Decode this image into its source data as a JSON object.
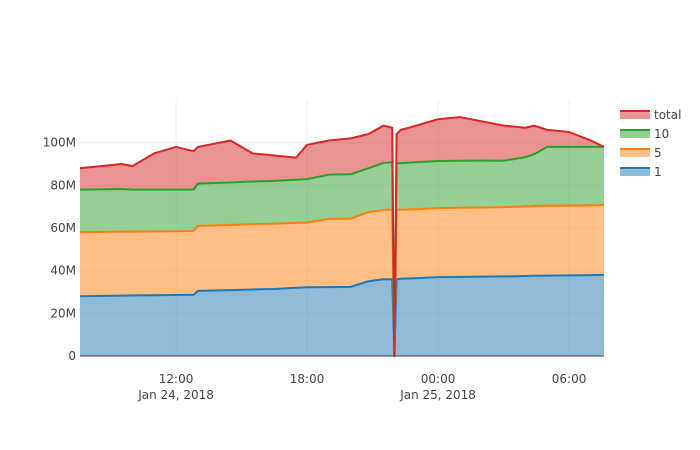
{
  "chart_data": {
    "type": "area",
    "stacked": true,
    "title": "",
    "xlabel": "",
    "ylabel": "",
    "x_unit": "hours since Jan 24, 2018 00:00",
    "xlim": [
      7.6,
      31.6
    ],
    "ylim": [
      0,
      120000000
    ],
    "yticks": [
      0,
      20000000,
      40000000,
      60000000,
      80000000,
      100000000
    ],
    "ytick_labels": [
      "0",
      "20M",
      "40M",
      "60M",
      "80M",
      "100M"
    ],
    "xticks": [
      {
        "x": 12,
        "label": "12:00",
        "sublabel": "Jan 24, 2018"
      },
      {
        "x": 18,
        "label": "18:00",
        "sublabel": ""
      },
      {
        "x": 24,
        "label": "00:00",
        "sublabel": "Jan 25, 2018"
      },
      {
        "x": 30,
        "label": "06:00",
        "sublabel": ""
      }
    ],
    "grid": true,
    "legend_position": "top-right",
    "x": [
      7.6,
      9.5,
      10.0,
      11.0,
      12.0,
      12.8,
      13.0,
      14.5,
      15.5,
      16.5,
      17.5,
      18.0,
      19.0,
      20.0,
      20.8,
      21.5,
      21.9,
      22.0,
      22.1,
      22.3,
      23.0,
      24.0,
      25.0,
      26.0,
      27.0,
      28.0,
      28.4,
      29.0,
      30.0,
      31.0,
      31.6
    ],
    "series": [
      {
        "name": "1",
        "color": "#1f77b4",
        "values": [
          28000000,
          28300000,
          28400000,
          28500000,
          28600000,
          28700000,
          30500000,
          30900000,
          31200000,
          31400000,
          32000000,
          32200000,
          32300000,
          32400000,
          35000000,
          36000000,
          36000000,
          0,
          36000000,
          36200000,
          36500000,
          37000000,
          37100000,
          37200000,
          37300000,
          37500000,
          37600000,
          37700000,
          37800000,
          37900000,
          38000000
        ]
      },
      {
        "name": "5",
        "color": "#ff7f0e",
        "values": [
          30000000,
          30000000,
          29900000,
          29900000,
          29900000,
          29900000,
          30500000,
          30500000,
          30600000,
          30600000,
          30400000,
          30300000,
          32000000,
          32000000,
          32400000,
          32500000,
          32600000,
          0,
          32500000,
          32400000,
          32300000,
          32300000,
          32400000,
          32400000,
          32500000,
          32600000,
          32700000,
          32700000,
          32700000,
          32700000,
          32700000
        ]
      },
      {
        "name": "10",
        "color": "#2ca02c",
        "values": [
          20000000,
          20000000,
          19700000,
          19600000,
          19500000,
          19400000,
          19800000,
          19900000,
          20000000,
          20100000,
          20200000,
          20400000,
          20700000,
          20800000,
          20600000,
          22000000,
          22200000,
          0,
          21800000,
          21800000,
          22000000,
          22100000,
          22000000,
          22000000,
          21700000,
          23100000,
          24300000,
          27600000,
          27500000,
          27400000,
          27300000
        ]
      },
      {
        "name": "total",
        "color": "#d62728",
        "is_total_overlay": true,
        "values": [
          88000000,
          90000000,
          89000000,
          95000000,
          98000000,
          96000000,
          98000000,
          101000000,
          95000000,
          94000000,
          93000000,
          99000000,
          101000000,
          102000000,
          104000000,
          108000000,
          107000000,
          0,
          104000000,
          106000000,
          108000000,
          111000000,
          112000000,
          110000000,
          108000000,
          107000000,
          108000000,
          106000000,
          105000000,
          101000000,
          98000000
        ]
      }
    ]
  }
}
